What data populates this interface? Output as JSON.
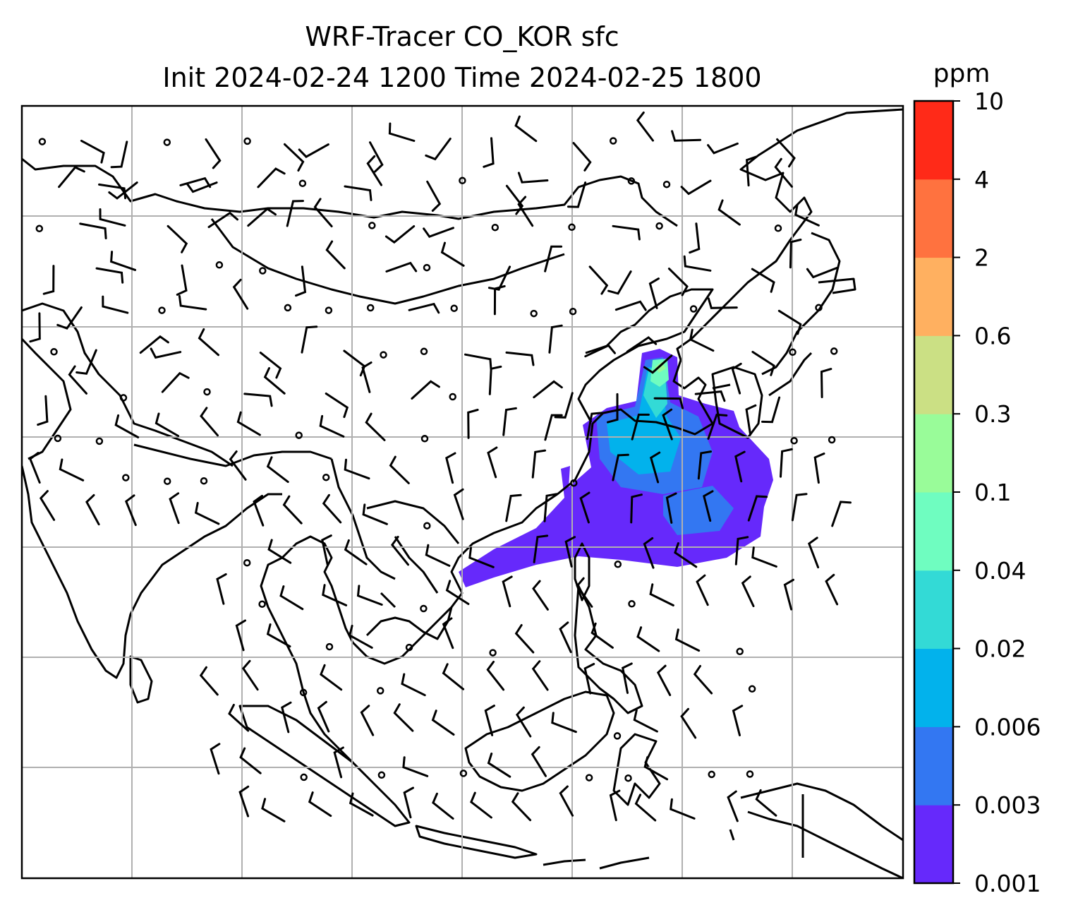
{
  "title": {
    "line1": "WRF-Tracer CO_KOR sfc",
    "line2": "Init 2024-02-24 1200 Time 2024-02-25 1800"
  },
  "colorbar": {
    "unit": "ppm",
    "ticks": [
      "0.001",
      "0.003",
      "0.006",
      "0.02",
      "0.04",
      "0.1",
      "0.3",
      "0.6",
      "2",
      "4",
      "10"
    ],
    "colors": [
      "#6629fb",
      "#3377f2",
      "#02b2ec",
      "#33dad6",
      "#6ffdc0",
      "#99fc99",
      "#cbe084",
      "#ffb060",
      "#ff723f",
      "#ff2a18"
    ]
  },
  "map": {
    "field": "CO_KOR tracer concentration",
    "gridlines": true,
    "overlay": "wind barbs"
  }
}
